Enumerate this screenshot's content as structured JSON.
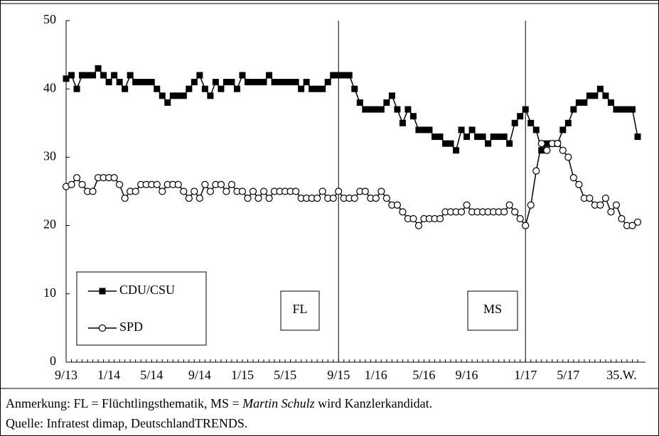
{
  "chart_data": {
    "type": "line",
    "categories": [
      "9/13",
      null,
      null,
      null,
      null,
      null,
      null,
      null,
      "1/14",
      null,
      null,
      null,
      null,
      null,
      null,
      null,
      "5/14",
      null,
      null,
      null,
      null,
      null,
      null,
      null,
      null,
      "9/14",
      null,
      null,
      null,
      null,
      null,
      null,
      null,
      "1/15",
      null,
      null,
      null,
      null,
      null,
      null,
      null,
      "5/15",
      null,
      null,
      null,
      null,
      null,
      null,
      null,
      null,
      null,
      "9/15",
      null,
      null,
      null,
      null,
      null,
      null,
      "1/16",
      null,
      null,
      null,
      null,
      null,
      null,
      null,
      null,
      "5/16",
      null,
      null,
      null,
      null,
      null,
      null,
      null,
      "9/16",
      null,
      null,
      null,
      null,
      null,
      null,
      null,
      null,
      null,
      null,
      "1/17",
      null,
      null,
      null,
      null,
      null,
      null,
      null,
      "5/17",
      null,
      null,
      null,
      null,
      null,
      null,
      null,
      null,
      null,
      "35.W.",
      null,
      null,
      null
    ],
    "series": [
      {
        "name": "CDU/CSU",
        "color": "#000000",
        "marker": "square",
        "values": [
          41.5,
          42,
          40,
          42,
          42,
          42,
          43,
          42,
          41,
          42,
          41,
          40,
          42,
          41,
          41,
          41,
          41,
          40,
          39,
          38,
          39,
          39,
          39,
          40,
          41,
          42,
          40,
          39,
          41,
          40,
          41,
          41,
          40,
          42,
          41,
          41,
          41,
          41,
          42,
          41,
          41,
          41,
          41,
          41,
          40,
          41,
          40,
          40,
          40,
          41,
          42,
          42,
          42,
          42,
          40,
          38,
          37,
          37,
          37,
          37,
          38,
          39,
          37,
          35,
          37,
          36,
          34,
          34,
          34,
          33,
          33,
          32,
          32,
          31,
          34,
          33,
          34,
          33,
          33,
          32,
          33,
          33,
          33,
          32,
          35,
          36,
          37,
          35,
          34,
          31,
          32,
          32,
          32,
          34,
          35,
          37,
          38,
          38,
          39,
          39,
          40,
          39,
          38,
          37,
          37,
          37,
          37,
          33
        ]
      },
      {
        "name": "SPD",
        "color": "#000000",
        "marker": "circle",
        "values": [
          25.7,
          26,
          27,
          26,
          25,
          25,
          27,
          27,
          27,
          27,
          26,
          24,
          25,
          25,
          26,
          26,
          26,
          26,
          25,
          26,
          26,
          26,
          25,
          24,
          25,
          24,
          26,
          25,
          26,
          26,
          25,
          26,
          25,
          25,
          24,
          25,
          24,
          25,
          24,
          25,
          25,
          25,
          25,
          25,
          24,
          24,
          24,
          24,
          25,
          24,
          24,
          25,
          24,
          24,
          24,
          25,
          25,
          24,
          24,
          25,
          24,
          23,
          23,
          22,
          21,
          21,
          20,
          21,
          21,
          21,
          21,
          22,
          22,
          22,
          22,
          23,
          22,
          22,
          22,
          22,
          22,
          22,
          22,
          23,
          22,
          21,
          20,
          23,
          28,
          32,
          31,
          32,
          32,
          31,
          30,
          27,
          26,
          24,
          24,
          23,
          23,
          24,
          22,
          23,
          21,
          20,
          20,
          20.5
        ]
      }
    ],
    "ylim": [
      0,
      50
    ],
    "yticks": [
      0,
      10,
      20,
      30,
      40,
      50
    ],
    "legend": "lower left",
    "annotations": [
      "FL",
      "MS"
    ],
    "note": [
      "Anmerkung: FL = Flüchtlingsthematik, MS = ",
      "Martin Schulz",
      " wird Kanzlerkandidat."
    ],
    "source": "Quelle: Infratest dimap, DeutschlandTRENDS."
  }
}
